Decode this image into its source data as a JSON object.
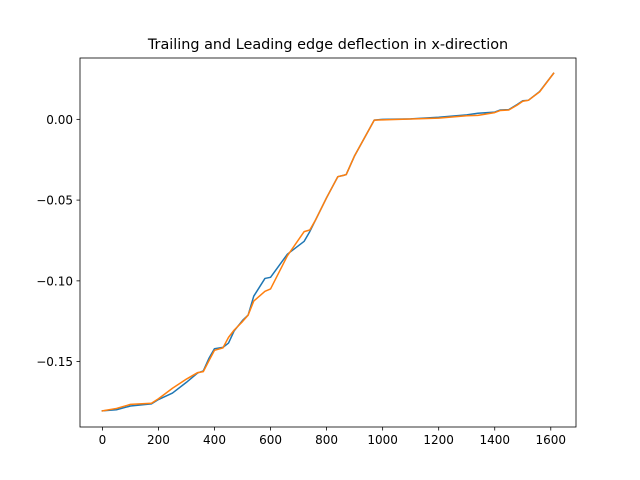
{
  "chart_data": {
    "type": "line",
    "title": "Trailing and Leading edge deflection in x-direction",
    "xlabel": "",
    "ylabel": "",
    "xlim": [
      -80,
      1690
    ],
    "ylim": [
      -0.1905,
      0.038
    ],
    "grid": false,
    "legend": "none",
    "xticks": [
      0,
      200,
      400,
      600,
      800,
      1000,
      1200,
      1400,
      1600
    ],
    "yticks": [
      -0.15,
      -0.1,
      -0.05,
      0.0
    ],
    "xtick_labels": [
      "0",
      "200",
      "400",
      "600",
      "800",
      "1000",
      "1200",
      "1400",
      "1600"
    ],
    "ytick_labels": [
      "−0.15",
      "−0.10",
      "−0.05",
      "0.00"
    ],
    "series": [
      {
        "color": "#1f77b4",
        "x": [
          0,
          50,
          100,
          175,
          200,
          250,
          300,
          340,
          360,
          380,
          400,
          430,
          450,
          470,
          500,
          520,
          540,
          580,
          600,
          660,
          720,
          740,
          760,
          800,
          840,
          860,
          870,
          900,
          970,
          1000,
          1100,
          1200,
          1300,
          1340,
          1400,
          1420,
          1450,
          1480,
          1500,
          1520,
          1560,
          1610
        ],
        "y": [
          -0.1805,
          -0.1798,
          -0.1775,
          -0.1762,
          -0.1735,
          -0.1695,
          -0.1628,
          -0.157,
          -0.1558,
          -0.148,
          -0.142,
          -0.1412,
          -0.1385,
          -0.131,
          -0.1245,
          -0.1212,
          -0.1095,
          -0.0985,
          -0.0978,
          -0.0835,
          -0.0755,
          -0.0695,
          -0.0625,
          -0.0485,
          -0.0355,
          -0.0347,
          -0.0342,
          -0.0225,
          -0.0005,
          0.0,
          0.0003,
          0.0013,
          0.0028,
          0.0038,
          0.0045,
          0.0058,
          0.006,
          0.0092,
          0.0115,
          0.0118,
          0.0172,
          0.0285
        ]
      },
      {
        "color": "#ff7f0e",
        "x": [
          0,
          50,
          100,
          175,
          200,
          250,
          300,
          340,
          360,
          380,
          400,
          430,
          450,
          470,
          500,
          520,
          540,
          580,
          600,
          660,
          720,
          740,
          760,
          800,
          840,
          860,
          870,
          900,
          970,
          1000,
          1100,
          1200,
          1300,
          1340,
          1400,
          1420,
          1450,
          1480,
          1500,
          1520,
          1560,
          1610
        ],
        "y": [
          -0.1805,
          -0.179,
          -0.1765,
          -0.1758,
          -0.173,
          -0.1665,
          -0.1608,
          -0.1568,
          -0.1562,
          -0.1495,
          -0.143,
          -0.1415,
          -0.135,
          -0.1305,
          -0.1252,
          -0.1212,
          -0.1125,
          -0.1065,
          -0.105,
          -0.0845,
          -0.0695,
          -0.0685,
          -0.0625,
          -0.0485,
          -0.0355,
          -0.0347,
          -0.0342,
          -0.0225,
          -0.0005,
          -0.0003,
          0.0002,
          0.0008,
          0.0022,
          0.0025,
          0.0042,
          0.0055,
          0.0058,
          0.0088,
          0.0112,
          0.0118,
          0.017,
          0.0285
        ]
      }
    ]
  }
}
